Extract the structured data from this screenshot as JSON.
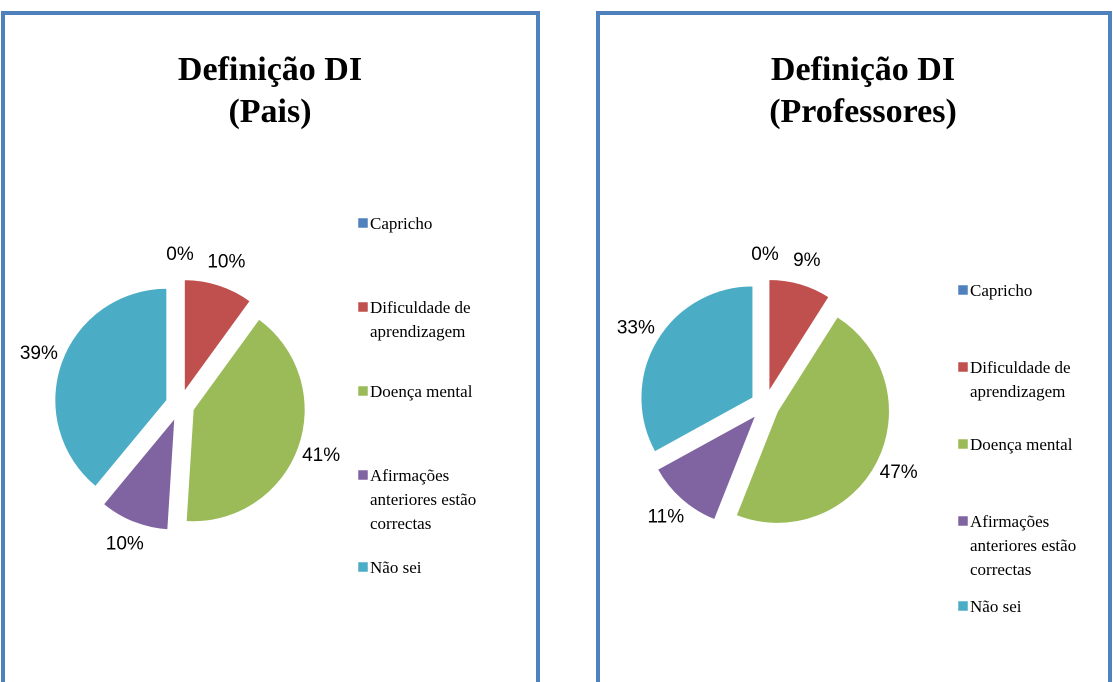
{
  "chart_data": [
    {
      "type": "pie",
      "title": "Definição DI",
      "subtitle": "(Pais)",
      "categories": [
        "Capricho",
        "Dificuldade de aprendizagem",
        "Doença mental",
        "Afirmações anteriores estão correctas",
        "Não sei"
      ],
      "values": [
        0,
        10,
        41,
        10,
        39
      ],
      "value_labels": [
        "0%",
        "10%",
        "41%",
        "10%",
        "39%"
      ],
      "colors": [
        "#4f81bd",
        "#c0504d",
        "#9bbb59",
        "#8064a2",
        "#4bacc6"
      ],
      "legend": "right"
    },
    {
      "type": "pie",
      "title": "Definição DI",
      "subtitle": "(Professores)",
      "categories": [
        "Capricho",
        "Dificuldade de aprendizagem",
        "Doença mental",
        "Afirmações anteriores estão correctas",
        "Não sei"
      ],
      "values": [
        0,
        9,
        47,
        11,
        33
      ],
      "value_labels": [
        "0%",
        "9%",
        "47%",
        "11%",
        "33%"
      ],
      "colors": [
        "#4f81bd",
        "#c0504d",
        "#9bbb59",
        "#8064a2",
        "#4bacc6"
      ],
      "legend": "right"
    }
  ]
}
